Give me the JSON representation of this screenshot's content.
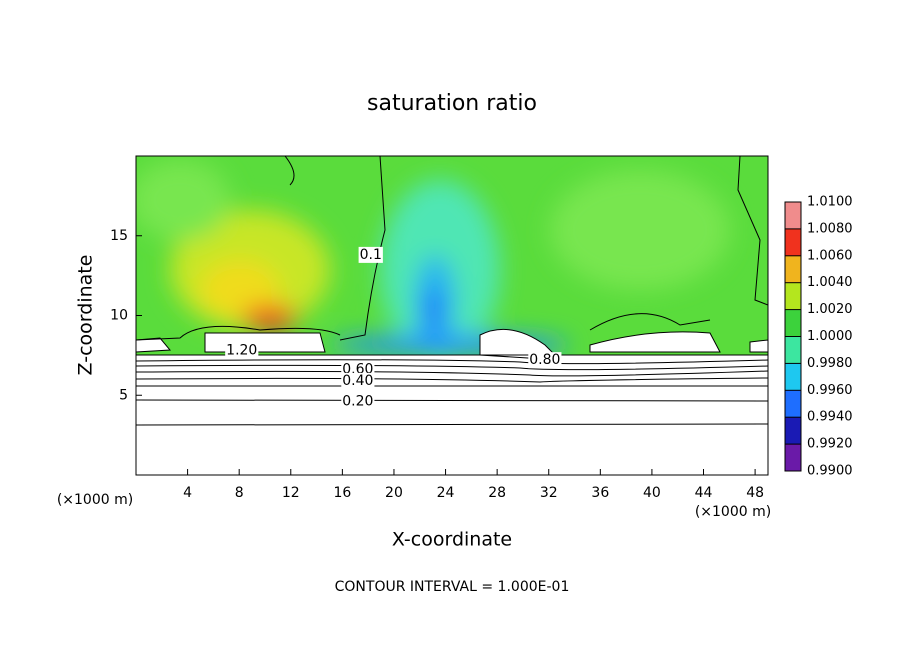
{
  "chart_data": {
    "type": "contour",
    "title": "saturation ratio",
    "x_label": "X-coordinate",
    "y_label": "Z-coordinate",
    "x_unit_left": "(×1000 m)",
    "x_unit_right": "(×1000 m)",
    "footer": "CONTOUR INTERVAL = 1.000E-01",
    "xlim": [
      0,
      49
    ],
    "xticks": [
      4,
      8,
      12,
      16,
      20,
      24,
      28,
      32,
      36,
      40,
      44,
      48
    ],
    "ylim": [
      0,
      20
    ],
    "yticks": [
      5,
      10,
      15
    ],
    "colorbar": {
      "lim": [
        0.99,
        1.01
      ],
      "ticks": [
        {
          "value": 0.99,
          "label": "0.9900"
        },
        {
          "value": 0.992,
          "label": "0.9920"
        },
        {
          "value": 0.994,
          "label": "0.9940"
        },
        {
          "value": 0.996,
          "label": "0.9960"
        },
        {
          "value": 0.998,
          "label": "0.9980"
        },
        {
          "value": 1.0,
          "label": "1.0000"
        },
        {
          "value": 1.002,
          "label": "1.0020"
        },
        {
          "value": 1.004,
          "label": "1.0040"
        },
        {
          "value": 1.006,
          "label": "1.0060"
        },
        {
          "value": 1.008,
          "label": "1.0080"
        },
        {
          "value": 1.01,
          "label": "1.0100"
        }
      ],
      "colors": [
        "#6a1aa8",
        "#1a1ab4",
        "#1e6eff",
        "#1ec8f0",
        "#3ce6a0",
        "#3cd23c",
        "#b4e61e",
        "#f0b41e",
        "#f0321e",
        "#f08c8c"
      ]
    },
    "annotations": [
      {
        "text": "1.20",
        "x": 8.2,
        "y": 7.8
      },
      {
        "text": "0.60",
        "x": 17.2,
        "y": 6.6
      },
      {
        "text": "0.40",
        "x": 17.2,
        "y": 5.9
      },
      {
        "text": "0.20",
        "x": 17.2,
        "y": 4.6
      },
      {
        "text": "0.80",
        "x": 31.7,
        "y": 7.2
      },
      {
        "text": "0.1",
        "x": 18.2,
        "y": 13.8
      }
    ]
  }
}
